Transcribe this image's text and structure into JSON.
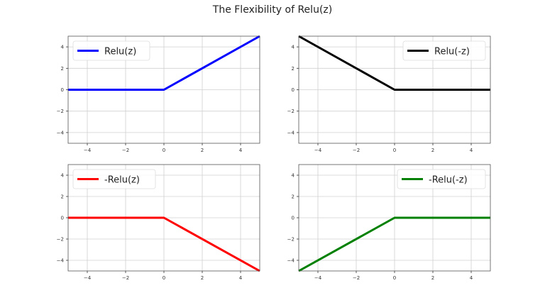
{
  "figure": {
    "title": "The Flexibility of Relu(z)"
  },
  "chart_data": [
    {
      "type": "line",
      "title": "",
      "legend": "Relu(z)",
      "legend_position": "upper left",
      "color": "#0000ff",
      "x": [
        -5,
        0,
        5
      ],
      "y": [
        0,
        0,
        5
      ],
      "xlim": [
        -5,
        5
      ],
      "ylim": [
        -5,
        5
      ],
      "xticks": [
        -4,
        -2,
        0,
        2,
        4
      ],
      "yticks": [
        -4,
        -2,
        0,
        2,
        4
      ],
      "grid": true
    },
    {
      "type": "line",
      "title": "",
      "legend": "Relu(-z)",
      "legend_position": "upper right",
      "color": "#000000",
      "x": [
        -5,
        0,
        5
      ],
      "y": [
        5,
        0,
        0
      ],
      "xlim": [
        -5,
        5
      ],
      "ylim": [
        -5,
        5
      ],
      "xticks": [
        -4,
        -2,
        0,
        2,
        4
      ],
      "yticks": [
        -4,
        -2,
        0,
        2,
        4
      ],
      "grid": true
    },
    {
      "type": "line",
      "title": "",
      "legend": "-Relu(z)",
      "legend_position": "upper left",
      "color": "#ff0000",
      "x": [
        -5,
        0,
        5
      ],
      "y": [
        0,
        0,
        -5
      ],
      "xlim": [
        -5,
        5
      ],
      "ylim": [
        -5,
        5
      ],
      "xticks": [
        -4,
        -2,
        0,
        2,
        4
      ],
      "yticks": [
        -4,
        -2,
        0,
        2,
        4
      ],
      "grid": true
    },
    {
      "type": "line",
      "title": "",
      "legend": "-Relu(-z)",
      "legend_position": "upper right",
      "color": "#008000",
      "x": [
        -5,
        0,
        5
      ],
      "y": [
        -5,
        0,
        0
      ],
      "xlim": [
        -5,
        5
      ],
      "ylim": [
        -5,
        5
      ],
      "xticks": [
        -4,
        -2,
        0,
        2,
        4
      ],
      "yticks": [
        -4,
        -2,
        0,
        2,
        4
      ],
      "grid": true
    }
  ]
}
